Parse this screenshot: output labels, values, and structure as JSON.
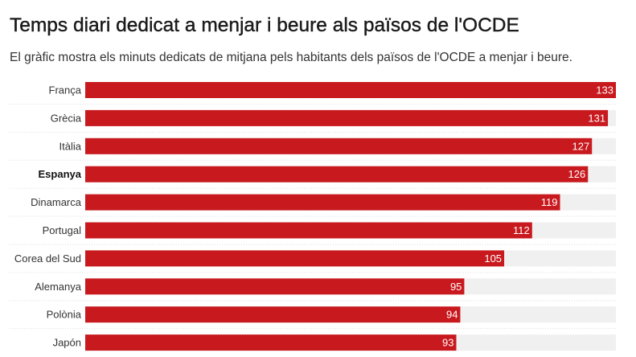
{
  "header": {
    "title": "Temps diari dedicat a menjar i beure als països de l'OCDE",
    "subtitle": "El gràfic mostra els minuts dedicats de mitjana pels habitants dels països de l'OCDE a menjar i beure."
  },
  "colors": {
    "bar": "#c8191e",
    "track": "#f0f0f0",
    "divider": "#dddddd"
  },
  "chart_data": {
    "type": "bar",
    "orientation": "horizontal",
    "categories": [
      "França",
      "Grècia",
      "Itàlia",
      "Espanya",
      "Dinamarca",
      "Portugal",
      "Corea del Sud",
      "Alemanya",
      "Polònia",
      "Japón"
    ],
    "values": [
      133,
      131,
      127,
      126,
      119,
      112,
      105,
      95,
      94,
      93
    ],
    "highlight": "Espanya",
    "xlim": [
      0,
      133
    ],
    "data_labels": true,
    "grid": false
  }
}
